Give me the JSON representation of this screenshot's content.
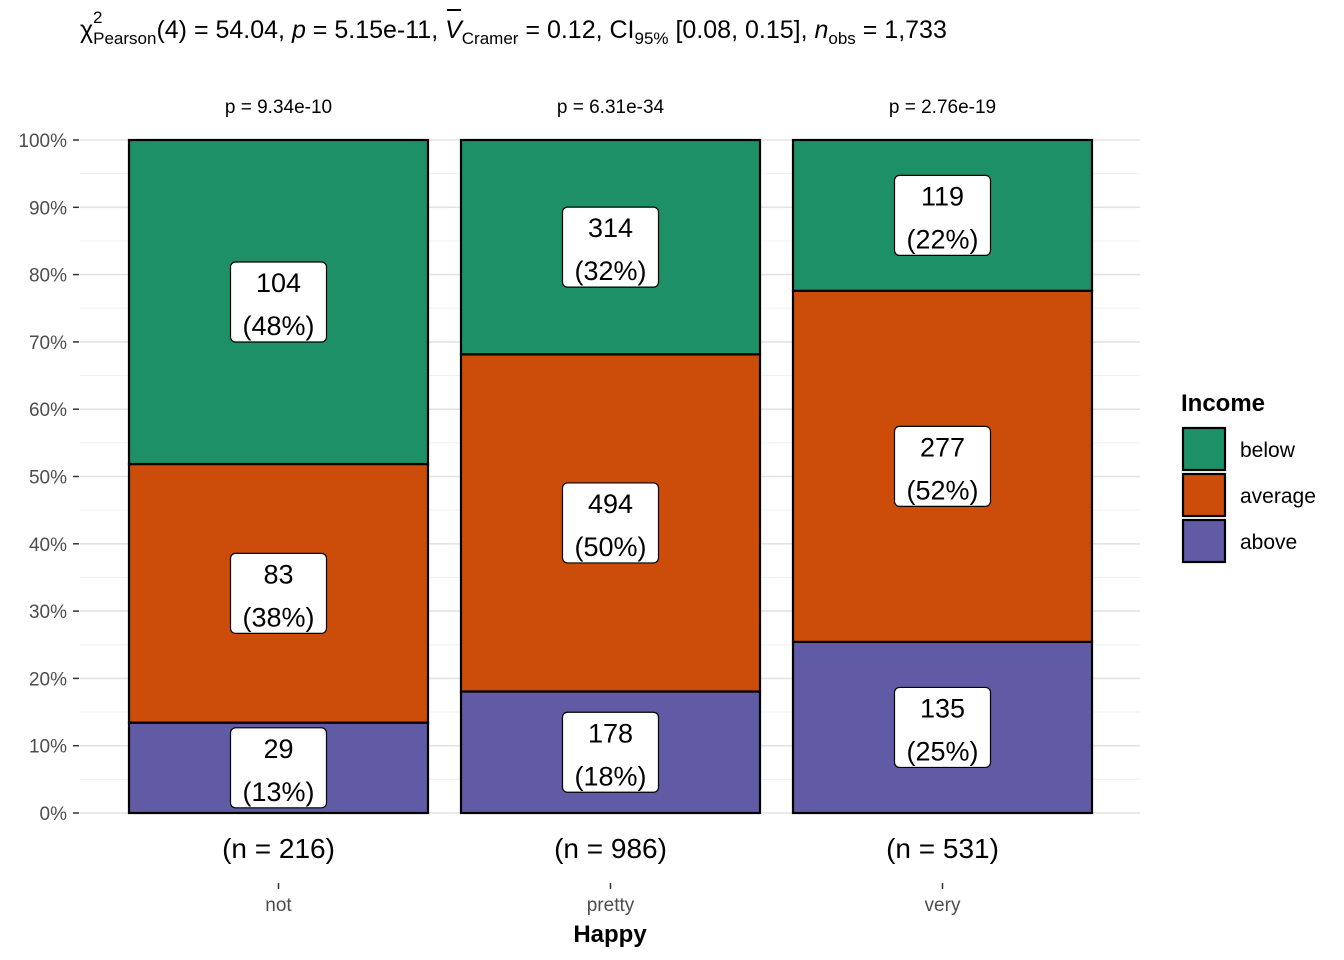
{
  "title": {
    "chi_symbol": "χ",
    "chi_sup": "2",
    "chi_sub": "Pearson",
    "df_part": "(4) = 54.04, ",
    "p_symbol": "p",
    "p_part": " = 5.15e-11, ",
    "v_symbol": "V",
    "v_sub": "Cramer",
    "v_part": " = 0.12, CI",
    "ci_sub": "95%",
    "ci_part": " [0.08, 0.15], ",
    "n_symbol": "n",
    "n_sub": "obs",
    "n_part": " = 1,733"
  },
  "chart_data": {
    "type": "bar",
    "stacked": "percent",
    "xlabel": "Happy",
    "ylabel": "",
    "ylim": [
      0,
      100
    ],
    "yticks": [
      "0%",
      "10%",
      "20%",
      "30%",
      "40%",
      "50%",
      "60%",
      "70%",
      "80%",
      "90%",
      "100%"
    ],
    "categories": [
      "not",
      "pretty",
      "very"
    ],
    "category_n": [
      "(n = 216)",
      "(n = 986)",
      "(n = 531)"
    ],
    "category_p": [
      "p = 9.34e-10",
      "p = 6.31e-34",
      "p = 2.76e-19"
    ],
    "legend": {
      "title": "Income",
      "position": "right"
    },
    "series": [
      {
        "name": "above",
        "color": "#615AA4",
        "values": [
          29,
          178,
          135
        ],
        "labels": [
          "(13%)",
          "(18%)",
          "(25%)"
        ]
      },
      {
        "name": "average",
        "color": "#CC4C0A",
        "values": [
          83,
          494,
          277
        ],
        "labels": [
          "(38%)",
          "(50%)",
          "(52%)"
        ]
      },
      {
        "name": "below",
        "color": "#1E9068",
        "values": [
          104,
          314,
          119
        ],
        "labels": [
          "(48%)",
          "(32%)",
          "(22%)"
        ]
      }
    ],
    "grid": true
  }
}
